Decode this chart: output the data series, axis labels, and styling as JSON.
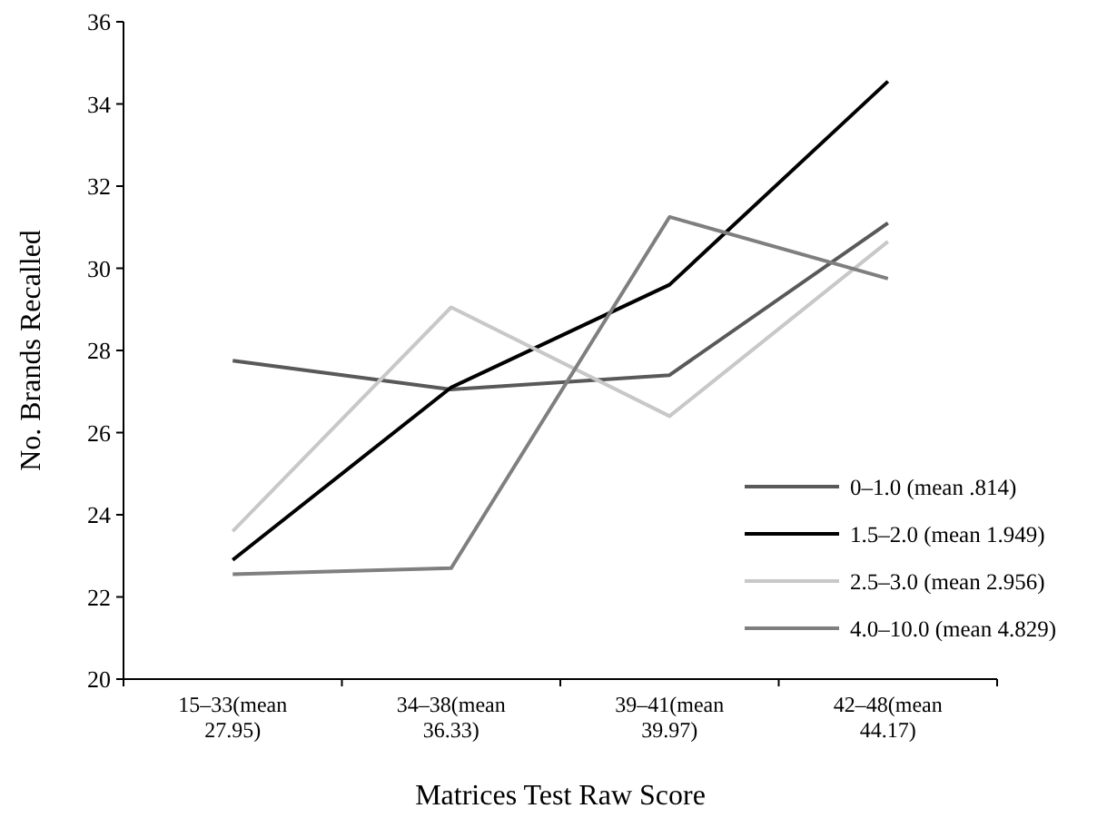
{
  "chart_data": {
    "type": "line",
    "xlabel": "Matrices Test Raw Score",
    "ylabel": "No. Brands Recalled",
    "categories": [
      "15–33(mean 27.95)",
      "34–38(mean 36.33)",
      "39–41(mean 39.97)",
      "42–48(mean 44.17)"
    ],
    "series": [
      {
        "name": "0–1.0 (mean .814)",
        "color": "#595959",
        "values": [
          27.75,
          27.05,
          27.4,
          31.1
        ]
      },
      {
        "name": "1.5–2.0 (mean 1.949)",
        "color": "#000000",
        "values": [
          22.9,
          27.1,
          29.6,
          34.55
        ]
      },
      {
        "name": "2.5–3.0 (mean 2.956)",
        "color": "#c8c8c8",
        "values": [
          23.6,
          29.05,
          26.4,
          30.65
        ]
      },
      {
        "name": "4.0–10.0 (mean 4.829)",
        "color": "#7f7f7f",
        "values": [
          22.55,
          22.7,
          31.25,
          29.75
        ]
      }
    ],
    "ylim": [
      20,
      36
    ],
    "yticks": [
      20,
      22,
      24,
      26,
      28,
      30,
      32,
      34,
      36
    ],
    "grid": false,
    "legend": "right",
    "marker": "none",
    "line_style": "solid"
  }
}
